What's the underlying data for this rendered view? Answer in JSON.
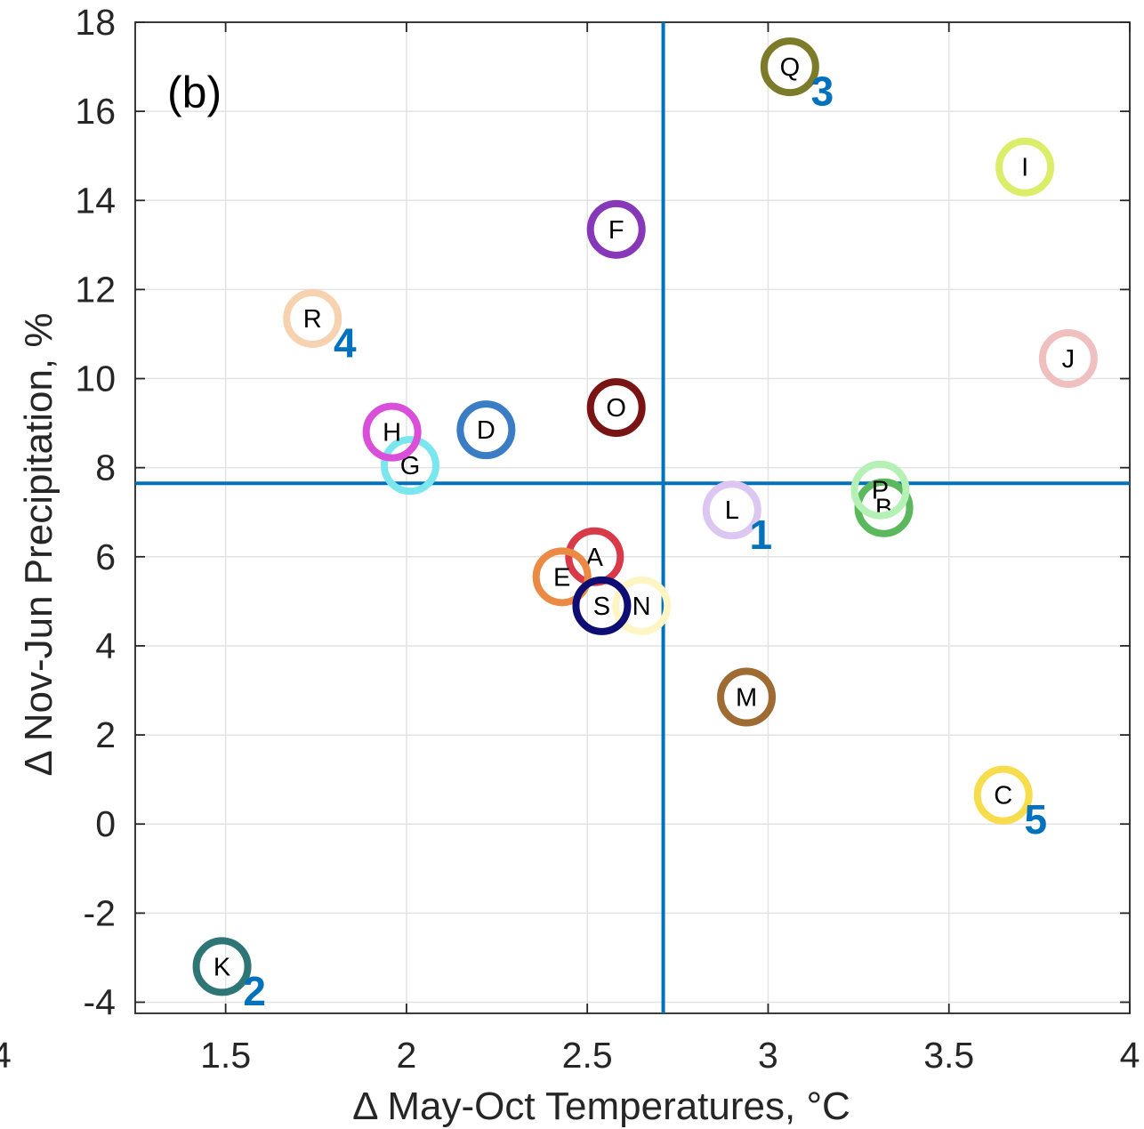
{
  "chart_data": {
    "type": "scatter",
    "panel_label": "(b)",
    "title": "",
    "xlabel": "Δ May-Oct Temperatures, °C",
    "ylabel": "Δ Nov-Jun Precipitation, %",
    "xlim": [
      1.25,
      4.0
    ],
    "ylim": [
      -4.25,
      18.0
    ],
    "x_ticks": [
      1.5,
      2,
      2.5,
      3,
      3.5,
      4
    ],
    "x_tick_labels": [
      "1.5",
      "2",
      "2.5",
      "3",
      "3.5",
      "4"
    ],
    "y_ticks": [
      -4,
      -2,
      0,
      2,
      4,
      6,
      8,
      10,
      12,
      14,
      16,
      18
    ],
    "y_tick_labels": [
      "-4",
      "-2",
      "0",
      "2",
      "4",
      "6",
      "8",
      "10",
      "12",
      "14",
      "16",
      "18"
    ],
    "partial_x_tick_label": "4",
    "grid": true,
    "reference_lines": {
      "x": 2.71,
      "y": 7.65,
      "color": "#0072bd"
    },
    "points": [
      {
        "label": "A",
        "x": 2.52,
        "y": 6.0,
        "color": "#d93a4a"
      },
      {
        "label": "B",
        "x": 3.32,
        "y": 7.1,
        "color": "#5cb85c"
      },
      {
        "label": "P",
        "x": 3.31,
        "y": 7.5,
        "color": "#b5f0b5"
      },
      {
        "label": "C",
        "x": 3.65,
        "y": 0.65,
        "color": "#f7dc4b"
      },
      {
        "label": "D",
        "x": 2.22,
        "y": 8.85,
        "color": "#3b7dc4"
      },
      {
        "label": "E",
        "x": 2.43,
        "y": 5.55,
        "color": "#ea8a45"
      },
      {
        "label": "F",
        "x": 2.58,
        "y": 13.35,
        "color": "#8638b8"
      },
      {
        "label": "G",
        "x": 2.01,
        "y": 8.05,
        "color": "#7be6ee"
      },
      {
        "label": "H",
        "x": 1.96,
        "y": 8.8,
        "color": "#d94fd9"
      },
      {
        "label": "I",
        "x": 3.71,
        "y": 14.75,
        "color": "#dced6a"
      },
      {
        "label": "J",
        "x": 3.83,
        "y": 10.45,
        "color": "#f0c0c0"
      },
      {
        "label": "K",
        "x": 1.49,
        "y": -3.2,
        "color": "#2e7575"
      },
      {
        "label": "L",
        "x": 2.9,
        "y": 7.05,
        "color": "#dcc7f2"
      },
      {
        "label": "M",
        "x": 2.94,
        "y": 2.85,
        "color": "#9e6b33"
      },
      {
        "label": "N",
        "x": 2.65,
        "y": 4.9,
        "color": "#fdf6c4"
      },
      {
        "label": "O",
        "x": 2.58,
        "y": 9.35,
        "color": "#7a1414"
      },
      {
        "label": "Q",
        "x": 3.06,
        "y": 17.0,
        "color": "#7b7b2a"
      },
      {
        "label": "R",
        "x": 1.74,
        "y": 11.35,
        "color": "#f7d2b0"
      },
      {
        "label": "S",
        "x": 2.54,
        "y": 4.9,
        "color": "#0d0d73"
      }
    ],
    "annotations": [
      {
        "text": "1",
        "x": 2.98,
        "y": 6.5,
        "color": "#0072bd"
      },
      {
        "text": "2",
        "x": 1.58,
        "y": -3.75,
        "color": "#0072bd"
      },
      {
        "text": "3",
        "x": 3.15,
        "y": 16.45,
        "color": "#0072bd"
      },
      {
        "text": "4",
        "x": 1.83,
        "y": 10.8,
        "color": "#0072bd"
      },
      {
        "text": "5",
        "x": 3.74,
        "y": 0.1,
        "color": "#0072bd"
      }
    ]
  }
}
